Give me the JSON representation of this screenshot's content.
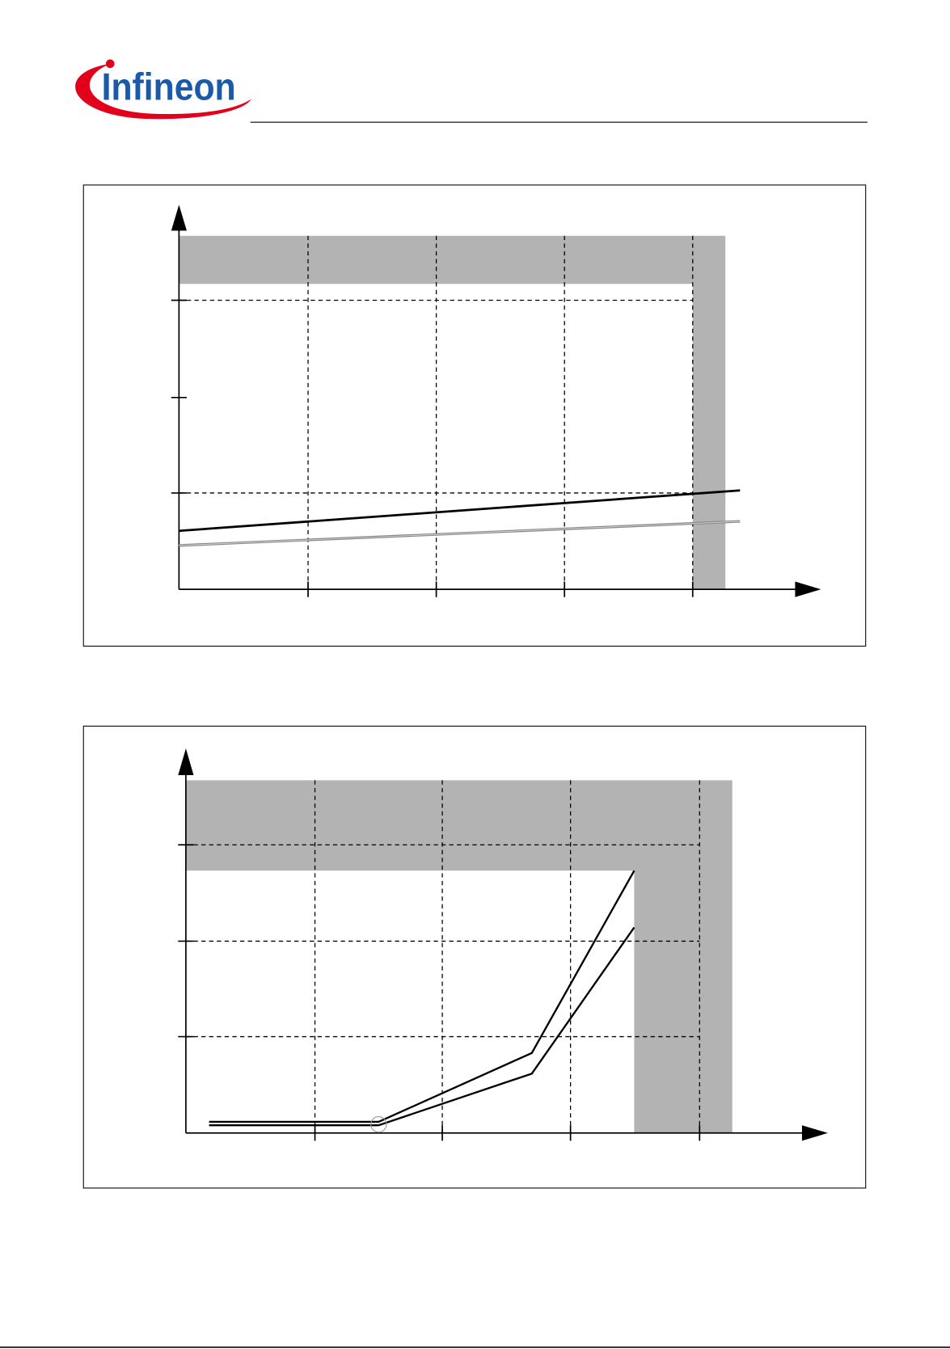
{
  "header": {
    "logo": "Infineon"
  }
}
